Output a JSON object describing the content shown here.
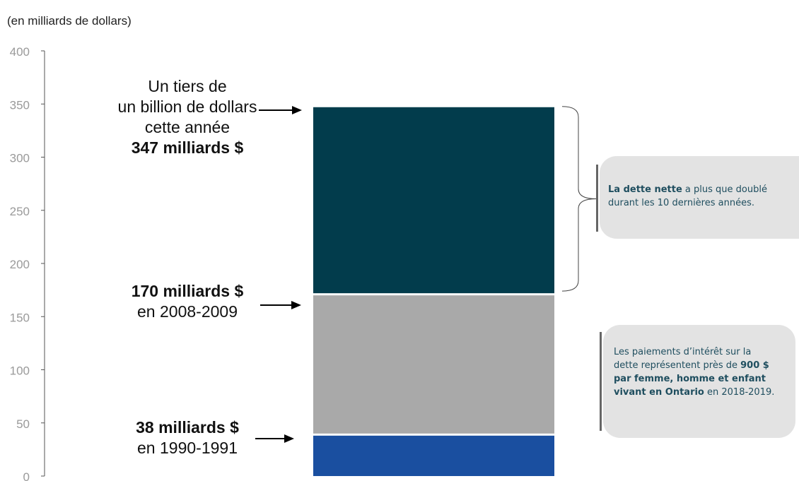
{
  "unit_note": "(en milliards de dollars)",
  "chart_data": {
    "type": "bar",
    "title": "",
    "xlabel": "",
    "ylabel": "(en milliards de dollars)",
    "ylim": [
      0,
      400
    ],
    "yticks": [
      0,
      50,
      100,
      150,
      200,
      250,
      300,
      350,
      400
    ],
    "grid": false,
    "stacked_segments": [
      {
        "name": "1990-1991",
        "value": 38,
        "color": "#1a4fa0"
      },
      {
        "name": "2008-2009",
        "value": 170,
        "color": "#a9a9a9"
      },
      {
        "name": "2018-2019",
        "value": 347,
        "color": "#023c4c"
      }
    ],
    "annotations": [
      {
        "target": 347,
        "lines": [
          "Un tiers de",
          "un billion de dollars",
          "cette année"
        ],
        "bold": "347 milliards $"
      },
      {
        "target": 170,
        "bold": "170 milliards $",
        "lines": [
          "en 2008-2009"
        ]
      },
      {
        "target": 38,
        "bold": "38 milliards $",
        "lines": [
          "en 1990-1991"
        ]
      }
    ]
  },
  "callouts": {
    "debt": {
      "bold": "La dette nette",
      "text": " a plus que doublé durant les 10 dernières années."
    },
    "interest": {
      "text_before": "Les paiements d’intérêt sur la dette représentent près de ",
      "bold": "900 $ par femme, homme et enfant vivant en Ontario",
      "text_after": " en 2018-2019."
    }
  }
}
